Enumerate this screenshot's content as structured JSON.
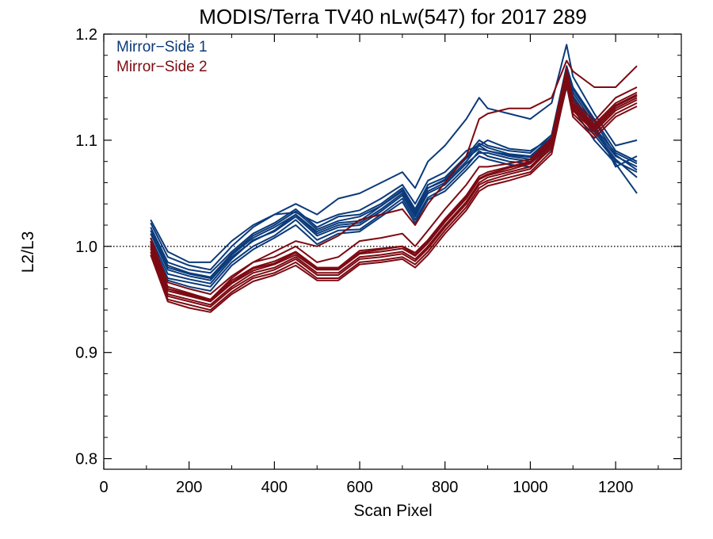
{
  "chart_data": {
    "type": "line",
    "title": "MODIS/Terra TV40 nLw(547) for 2017 289",
    "xlabel": "Scan Pixel",
    "ylabel": "L2/L3",
    "xlim": [
      0,
      1354
    ],
    "ylim": [
      0.79,
      1.2
    ],
    "x_ticks": [
      0,
      200,
      400,
      600,
      800,
      1000,
      1200
    ],
    "x_tick_labels": [
      "0",
      "200",
      "400",
      "600",
      "800",
      "1000",
      "1200"
    ],
    "y_ticks": [
      0.8,
      0.9,
      1.0,
      1.1,
      1.2
    ],
    "y_tick_labels": [
      "0.8",
      "0.9",
      "1.0",
      "1.1",
      "1.2"
    ],
    "reference_line": 1.0,
    "legend_position": "top-left",
    "colors": {
      "ms1": "#0b3a7a",
      "ms2": "#7d0a12"
    },
    "legend": [
      {
        "label": "Mirror−Side 1",
        "color": "#0b3a7a"
      },
      {
        "label": "Mirror−Side 2",
        "color": "#7d0a12"
      }
    ],
    "x": [
      110,
      150,
      200,
      250,
      300,
      350,
      400,
      450,
      500,
      550,
      600,
      650,
      700,
      730,
      760,
      800,
      850,
      880,
      900,
      950,
      1000,
      1050,
      1085,
      1100,
      1150,
      1200,
      1250
    ],
    "series": [
      {
        "group": "ms1",
        "values": [
          1.012,
          0.978,
          0.972,
          0.968,
          0.99,
          1.005,
          1.015,
          1.03,
          1.012,
          1.02,
          1.022,
          1.035,
          1.05,
          1.03,
          1.052,
          1.06,
          1.08,
          1.095,
          1.09,
          1.085,
          1.082,
          1.1,
          1.16,
          1.14,
          1.11,
          1.085,
          1.075
        ]
      },
      {
        "group": "ms1",
        "values": [
          1.018,
          0.985,
          0.978,
          0.975,
          0.995,
          1.012,
          1.022,
          1.035,
          1.018,
          1.028,
          1.03,
          1.04,
          1.055,
          1.035,
          1.058,
          1.065,
          1.085,
          1.1,
          1.095,
          1.09,
          1.088,
          1.105,
          1.17,
          1.15,
          1.12,
          1.09,
          1.08
        ]
      },
      {
        "group": "ms1",
        "values": [
          1.005,
          0.97,
          0.966,
          0.962,
          0.985,
          1.0,
          1.01,
          1.025,
          1.006,
          1.015,
          1.016,
          1.03,
          1.045,
          1.025,
          1.046,
          1.055,
          1.075,
          1.09,
          1.085,
          1.08,
          1.078,
          1.095,
          1.155,
          1.135,
          1.105,
          1.08,
          1.07
        ]
      },
      {
        "group": "ms1",
        "values": [
          1.022,
          0.99,
          0.982,
          0.978,
          1.0,
          1.018,
          1.03,
          1.032,
          1.022,
          1.03,
          1.034,
          1.045,
          1.058,
          1.04,
          1.062,
          1.07,
          1.09,
          1.095,
          1.1,
          1.092,
          1.09,
          1.102,
          1.165,
          1.145,
          1.115,
          1.075,
          1.085
        ]
      },
      {
        "group": "ms1",
        "values": [
          1.008,
          0.974,
          0.969,
          0.965,
          0.988,
          1.006,
          1.014,
          1.028,
          1.01,
          1.018,
          1.02,
          1.033,
          1.048,
          1.028,
          1.05,
          1.058,
          1.078,
          1.088,
          1.088,
          1.083,
          1.08,
          1.098,
          1.158,
          1.138,
          1.108,
          1.082,
          1.065
        ]
      },
      {
        "group": "ms1",
        "values": [
          1.015,
          0.982,
          0.975,
          0.971,
          0.993,
          1.01,
          1.02,
          1.033,
          1.016,
          1.024,
          1.028,
          1.038,
          1.052,
          1.033,
          1.055,
          1.062,
          1.083,
          1.097,
          1.093,
          1.087,
          1.085,
          1.103,
          1.162,
          1.142,
          1.112,
          1.088,
          1.078
        ]
      },
      {
        "group": "ms1",
        "values": [
          1.002,
          0.968,
          0.962,
          0.958,
          0.982,
          0.997,
          1.008,
          1.02,
          1.002,
          1.012,
          1.014,
          1.028,
          1.042,
          1.022,
          1.044,
          1.052,
          1.072,
          1.085,
          1.082,
          1.077,
          1.075,
          1.092,
          1.15,
          1.13,
          1.1,
          1.078,
          1.05
        ]
      },
      {
        "group": "ms1",
        "values": [
          1.025,
          0.995,
          0.985,
          0.985,
          1.005,
          1.02,
          1.03,
          1.04,
          1.03,
          1.045,
          1.05,
          1.06,
          1.07,
          1.055,
          1.08,
          1.095,
          1.12,
          1.14,
          1.13,
          1.125,
          1.12,
          1.135,
          1.19,
          1.16,
          1.125,
          1.095,
          1.1
        ]
      },
      {
        "group": "ms1",
        "values": [
          1.012,
          0.98,
          0.974,
          0.97,
          0.992,
          1.008,
          1.018,
          1.03,
          1.014,
          1.022,
          1.024,
          1.038,
          1.053,
          1.032,
          1.055,
          1.063,
          1.083,
          1.092,
          1.09,
          1.086,
          1.084,
          1.101,
          1.168,
          1.148,
          1.118,
          1.086,
          1.072
        ]
      },
      {
        "group": "ms2",
        "values": [
          1.0,
          0.955,
          0.95,
          0.945,
          0.962,
          0.975,
          0.98,
          0.99,
          0.975,
          0.975,
          0.99,
          0.992,
          0.995,
          0.988,
          1.0,
          1.02,
          1.042,
          1.06,
          1.065,
          1.07,
          1.075,
          1.095,
          1.16,
          1.13,
          1.11,
          1.13,
          1.14
        ]
      },
      {
        "group": "ms2",
        "values": [
          1.005,
          0.962,
          0.956,
          0.95,
          0.968,
          0.98,
          0.986,
          0.995,
          0.98,
          0.98,
          0.996,
          0.998,
          1.0,
          0.994,
          1.006,
          1.026,
          1.048,
          1.066,
          1.07,
          1.075,
          1.08,
          1.1,
          1.165,
          1.135,
          1.115,
          1.135,
          1.145
        ]
      },
      {
        "group": "ms2",
        "values": [
          0.995,
          0.95,
          0.945,
          0.94,
          0.957,
          0.97,
          0.975,
          0.985,
          0.97,
          0.97,
          0.985,
          0.987,
          0.99,
          0.983,
          0.995,
          1.015,
          1.037,
          1.055,
          1.06,
          1.065,
          1.07,
          1.09,
          1.155,
          1.125,
          1.105,
          1.125,
          1.135
        ]
      },
      {
        "group": "ms2",
        "values": [
          1.002,
          0.958,
          0.953,
          0.948,
          0.965,
          0.977,
          0.983,
          0.992,
          0.978,
          0.978,
          0.993,
          0.995,
          0.998,
          0.991,
          1.003,
          1.023,
          1.045,
          1.063,
          1.067,
          1.072,
          1.078,
          1.097,
          1.162,
          1.132,
          1.112,
          1.132,
          1.142
        ]
      },
      {
        "group": "ms2",
        "values": [
          0.998,
          0.953,
          0.948,
          0.943,
          0.96,
          0.972,
          0.978,
          0.988,
          0.973,
          0.973,
          0.988,
          0.99,
          0.993,
          0.986,
          0.998,
          1.018,
          1.04,
          1.058,
          1.062,
          1.068,
          1.073,
          1.093,
          1.158,
          1.128,
          1.108,
          1.128,
          1.138
        ]
      },
      {
        "group": "ms2",
        "values": [
          1.008,
          0.966,
          0.96,
          0.955,
          0.972,
          0.985,
          0.99,
          1.0,
          0.985,
          0.99,
          1.005,
          1.008,
          1.012,
          1.0,
          1.015,
          1.035,
          1.058,
          1.075,
          1.075,
          1.078,
          1.082,
          1.102,
          1.168,
          1.138,
          1.118,
          1.14,
          1.15
        ]
      },
      {
        "group": "ms2",
        "values": [
          0.992,
          0.948,
          0.942,
          0.938,
          0.955,
          0.967,
          0.973,
          0.982,
          0.968,
          0.968,
          0.983,
          0.985,
          0.988,
          0.98,
          0.992,
          1.012,
          1.034,
          1.052,
          1.057,
          1.062,
          1.068,
          1.087,
          1.152,
          1.122,
          1.102,
          1.122,
          1.132
        ]
      },
      {
        "group": "ms2",
        "values": [
          1.0,
          0.96,
          0.955,
          0.95,
          0.97,
          0.985,
          0.995,
          1.005,
          1.0,
          1.01,
          1.025,
          1.03,
          1.035,
          1.02,
          1.04,
          1.06,
          1.085,
          1.12,
          1.125,
          1.13,
          1.13,
          1.14,
          1.175,
          1.165,
          1.15,
          1.15,
          1.17
        ]
      },
      {
        "group": "ms2",
        "values": [
          1.004,
          0.96,
          0.954,
          0.949,
          0.966,
          0.979,
          0.984,
          0.994,
          0.979,
          0.979,
          0.994,
          0.997,
          1.0,
          0.992,
          1.005,
          1.025,
          1.047,
          1.064,
          1.068,
          1.074,
          1.079,
          1.099,
          1.163,
          1.133,
          1.113,
          1.133,
          1.143
        ]
      }
    ]
  }
}
